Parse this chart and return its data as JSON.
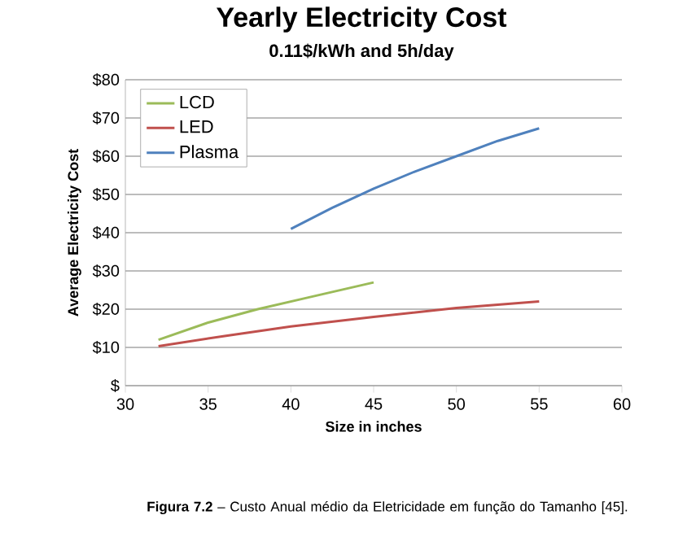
{
  "chart_data": {
    "type": "line",
    "title": "Yearly Electricity Cost",
    "subtitle": "0.11$/kWh and 5h/day",
    "xlabel": "Size in inches",
    "ylabel": "Average Electricity Cost",
    "annotations": [
      "**Figura 7.2** – Custo Anual médio da Eletricidade em função do Tamanho [45]."
    ],
    "xlim": [
      30,
      60
    ],
    "xticks": [
      30,
      35,
      40,
      45,
      50,
      55,
      60
    ],
    "ylim": [
      0,
      80
    ],
    "yticks": [
      {
        "value": 0,
        "label": "$"
      },
      {
        "value": 10,
        "label": "$10"
      },
      {
        "value": 20,
        "label": "$20"
      },
      {
        "value": 30,
        "label": "$30"
      },
      {
        "value": 40,
        "label": "$40"
      },
      {
        "value": 50,
        "label": "$50"
      },
      {
        "value": 60,
        "label": "$60"
      },
      {
        "value": 70,
        "label": "$70"
      },
      {
        "value": 80,
        "label": "$80"
      }
    ],
    "grid": "y",
    "legend": "top left",
    "marker": "none",
    "line_style": "solid",
    "series": [
      {
        "name": "LCD",
        "color": "#9bbb59",
        "x": [
          32,
          35,
          38,
          41,
          45
        ],
        "values": [
          12,
          16.5,
          20,
          23,
          27
        ]
      },
      {
        "name": "LED",
        "color": "#c0504d",
        "x": [
          32,
          36,
          40,
          45,
          50,
          55
        ],
        "values": [
          10.3,
          13,
          15.5,
          18,
          20.3,
          22
        ]
      },
      {
        "name": "Plasma",
        "color": "#4f81bd",
        "x": [
          40,
          42.5,
          45,
          47.5,
          50,
          52.5,
          55
        ],
        "values": [
          41,
          46.5,
          51.5,
          56,
          60,
          64,
          67.3
        ]
      }
    ]
  }
}
